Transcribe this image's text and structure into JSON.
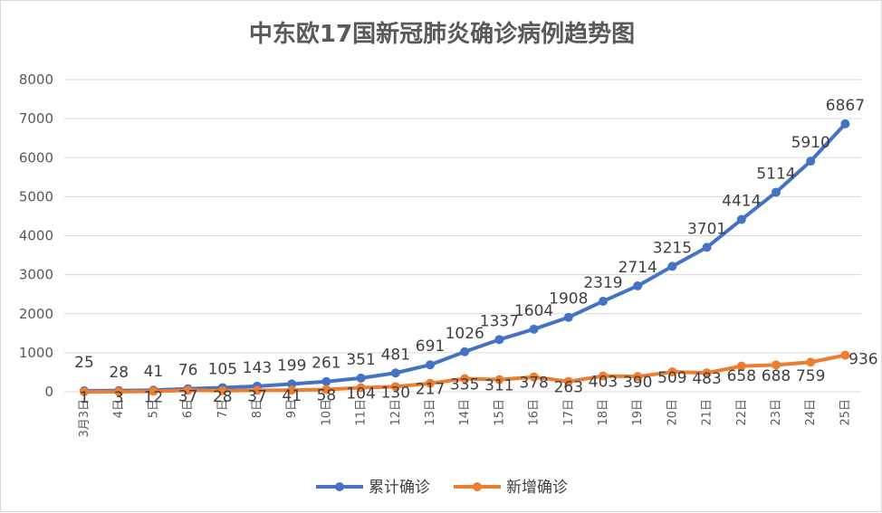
{
  "chart_data": {
    "type": "line",
    "title": "中东欧17国新冠肺炎确诊病例趋势图",
    "xlabel": "",
    "ylabel": "",
    "ylim": [
      0,
      8000
    ],
    "yticks": [
      "0",
      "1000",
      "2000",
      "3000",
      "4000",
      "5000",
      "6000",
      "7000",
      "8000"
    ],
    "categories": [
      "3月3日",
      "4日",
      "5日",
      "6日",
      "7日",
      "8日",
      "9日",
      "10日",
      "11日",
      "12日",
      "13日",
      "14日",
      "15日",
      "16日",
      "17日",
      "18日",
      "19日",
      "20日",
      "21日",
      "22日",
      "23日",
      "24日",
      "25日"
    ],
    "series": [
      {
        "name": "累计确诊",
        "color": "#4472C4",
        "values": [
          25,
          28,
          41,
          76,
          105,
          143,
          199,
          261,
          351,
          481,
          691,
          1026,
          1337,
          1604,
          1908,
          2319,
          2714,
          3215,
          3701,
          4414,
          5114,
          5910,
          6867
        ]
      },
      {
        "name": "新增确诊",
        "color": "#ED7D31",
        "values": [
          1,
          3,
          12,
          37,
          28,
          37,
          41,
          58,
          104,
          130,
          217,
          335,
          311,
          378,
          263,
          403,
          390,
          509,
          483,
          658,
          688,
          759,
          936
        ]
      }
    ],
    "grid": true,
    "legend_position": "bottom",
    "data_labels": true
  }
}
